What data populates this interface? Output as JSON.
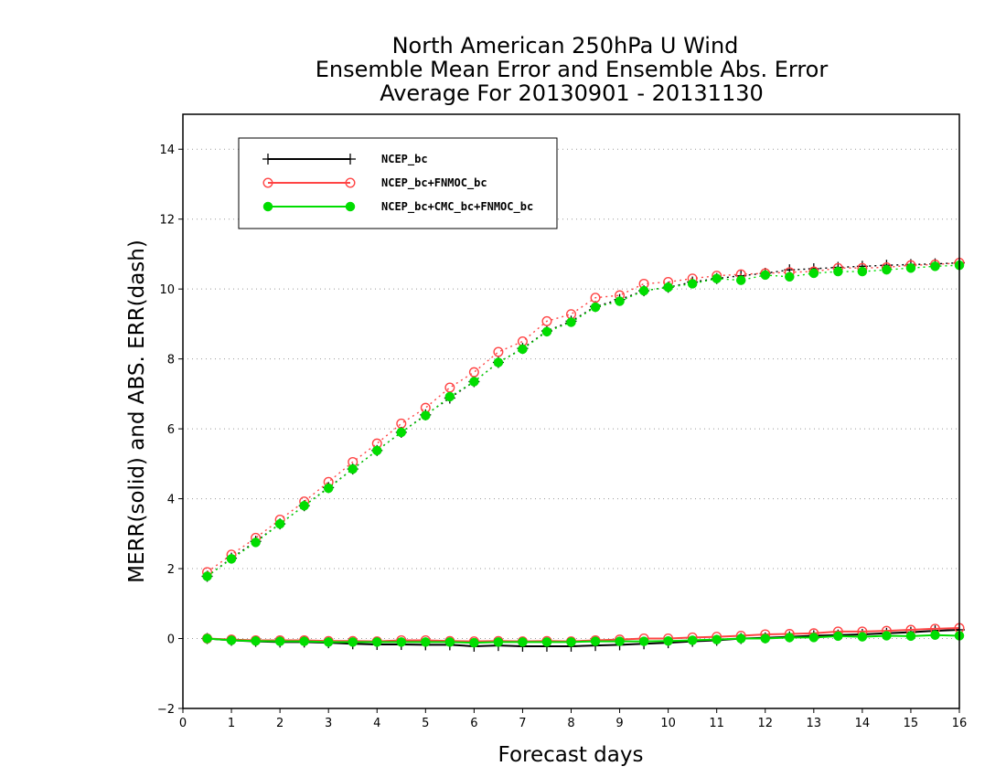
{
  "chart_data": {
    "type": "line",
    "title": "North American 250hPa U Wind",
    "subtitle": [
      "Ensemble Mean Error and Ensemble Abs. Error",
      "Average For 20130901 - 20131130"
    ],
    "xlabel": "Forecast days",
    "ylabel": "MERR(solid) and ABS. ERR(dash)",
    "xlim": [
      0,
      16
    ],
    "ylim": [
      -2,
      15
    ],
    "xticks": [
      0,
      1,
      2,
      3,
      4,
      5,
      6,
      7,
      8,
      9,
      10,
      11,
      12,
      13,
      14,
      15,
      16
    ],
    "yticks": [
      -2,
      0,
      2,
      4,
      6,
      8,
      10,
      12,
      14
    ],
    "grid": "horizontal dotted",
    "legend_position": "top-left",
    "x": [
      0.5,
      1,
      1.5,
      2,
      2.5,
      3,
      3.5,
      4,
      4.5,
      5,
      5.5,
      6,
      6.5,
      7,
      7.5,
      8,
      8.5,
      9,
      9.5,
      10,
      10.5,
      11,
      11.5,
      12,
      12.5,
      13,
      13.5,
      14,
      14.5,
      15,
      15.5,
      16
    ],
    "series": [
      {
        "name": "NCEP_bc",
        "color": "#000000",
        "marker": "plus",
        "merr": [
          0.0,
          -0.05,
          -0.08,
          -0.1,
          -0.1,
          -0.12,
          -0.15,
          -0.17,
          -0.17,
          -0.18,
          -0.18,
          -0.22,
          -0.2,
          -0.22,
          -0.22,
          -0.22,
          -0.2,
          -0.18,
          -0.15,
          -0.12,
          -0.08,
          -0.05,
          0.0,
          0.02,
          0.05,
          0.08,
          0.1,
          0.12,
          0.15,
          0.18,
          0.22,
          0.25
        ],
        "abs_err": [
          1.78,
          2.3,
          2.78,
          3.28,
          3.8,
          4.32,
          4.85,
          5.38,
          5.9,
          6.4,
          6.88,
          7.35,
          7.9,
          8.3,
          8.8,
          9.08,
          9.5,
          9.7,
          9.95,
          10.05,
          10.2,
          10.3,
          10.38,
          10.45,
          10.55,
          10.58,
          10.62,
          10.65,
          10.68,
          10.7,
          10.72,
          10.75
        ]
      },
      {
        "name": "NCEP_bc+FNMOC_bc",
        "color": "#ff4444",
        "marker": "open-circle",
        "merr": [
          0.0,
          -0.03,
          -0.05,
          -0.05,
          -0.05,
          -0.07,
          -0.07,
          -0.08,
          -0.05,
          -0.05,
          -0.07,
          -0.08,
          -0.07,
          -0.08,
          -0.07,
          -0.08,
          -0.05,
          -0.03,
          0.0,
          0.0,
          0.03,
          0.05,
          0.08,
          0.12,
          0.13,
          0.15,
          0.2,
          0.2,
          0.22,
          0.25,
          0.28,
          0.3
        ],
        "abs_err": [
          1.9,
          2.4,
          2.88,
          3.4,
          3.92,
          4.48,
          5.05,
          5.58,
          6.15,
          6.6,
          7.18,
          7.62,
          8.2,
          8.5,
          9.08,
          9.28,
          9.75,
          9.82,
          10.15,
          10.2,
          10.3,
          10.38,
          10.42,
          10.45,
          10.48,
          10.5,
          10.6,
          10.6,
          10.62,
          10.68,
          10.7,
          10.75
        ]
      },
      {
        "name": "NCEP_bc+CMC_bc+FNMOC_bc",
        "color": "#00dd00",
        "marker": "filled-circle",
        "merr": [
          0.0,
          -0.05,
          -0.07,
          -0.08,
          -0.08,
          -0.1,
          -0.1,
          -0.1,
          -0.1,
          -0.1,
          -0.1,
          -0.12,
          -0.1,
          -0.1,
          -0.1,
          -0.1,
          -0.08,
          -0.08,
          -0.08,
          -0.07,
          -0.05,
          -0.03,
          0.0,
          0.0,
          0.03,
          0.03,
          0.07,
          0.05,
          0.08,
          0.07,
          0.1,
          0.08
        ],
        "abs_err": [
          1.78,
          2.28,
          2.75,
          3.28,
          3.8,
          4.3,
          4.85,
          5.38,
          5.9,
          6.38,
          6.92,
          7.35,
          7.9,
          8.28,
          8.78,
          9.05,
          9.48,
          9.65,
          9.95,
          10.05,
          10.15,
          10.3,
          10.25,
          10.4,
          10.35,
          10.45,
          10.5,
          10.5,
          10.55,
          10.6,
          10.65,
          10.68
        ]
      }
    ]
  }
}
